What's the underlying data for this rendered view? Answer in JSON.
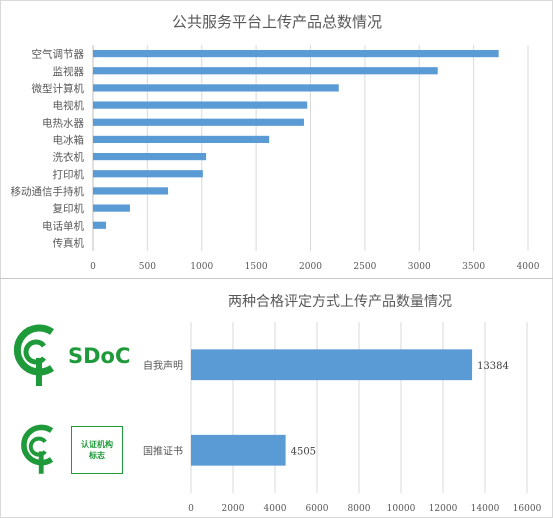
{
  "chart_data": [
    {
      "type": "bar",
      "orientation": "horizontal",
      "title": "公共服务平台上传产品总数情况",
      "categories": [
        "空气调节器",
        "监视器",
        "微型计算机",
        "电视机",
        "电热水器",
        "电冰箱",
        "洗衣机",
        "打印机",
        "移动通信手持机",
        "复印机",
        "电话单机",
        "传真机"
      ],
      "values": [
        3730,
        3170,
        2260,
        1970,
        1940,
        1620,
        1040,
        1010,
        690,
        340,
        120,
        0
      ],
      "xlim": [
        0,
        4000
      ],
      "xticks": [
        "0",
        "500",
        "1000",
        "1500",
        "2000",
        "2500",
        "3000",
        "3500",
        "4000"
      ],
      "grid": true,
      "bar_color": "#5b9bd5"
    },
    {
      "type": "bar",
      "orientation": "horizontal",
      "title": "两种合格评定方式上传产品数量情况",
      "categories": [
        "自我声明",
        "国推证书"
      ],
      "values": [
        13384,
        4505
      ],
      "data_labels": [
        "13384",
        "4505"
      ],
      "xlim": [
        0,
        16000
      ],
      "xticks": [
        "0",
        "2000",
        "4000",
        "6000",
        "8000",
        "10000",
        "12000",
        "14000",
        "16000"
      ],
      "grid": true,
      "bar_color": "#5b9bd5"
    }
  ],
  "logos": {
    "sdoc_text": "SDoC",
    "cert_line1": "认证机构",
    "cert_line2": "标志",
    "color": "#1f9a3a"
  }
}
